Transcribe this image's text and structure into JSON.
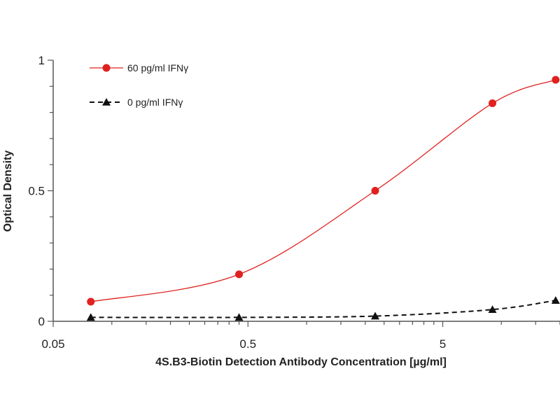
{
  "chart_data": {
    "type": "line",
    "xlabel": "4S.B3-Biotin Detection Antibody Concentration [µg/ml]",
    "ylabel": "Optical Density",
    "x_scale": "log",
    "xlim": [
      0.05,
      20
    ],
    "ylim": [
      0,
      1
    ],
    "x_ticks": [
      {
        "value": 0.05,
        "label": "0.05"
      },
      {
        "value": 0.5,
        "label": "0.5"
      },
      {
        "value": 5,
        "label": "5"
      }
    ],
    "y_ticks": [
      {
        "value": 0,
        "label": "0"
      },
      {
        "value": 0.5,
        "label": "0.5"
      },
      {
        "value": 1,
        "label": "1"
      }
    ],
    "grid": false,
    "legend_position": "top-left",
    "series": [
      {
        "name": "60 pg/ml IFNγ",
        "color": "#e0211f",
        "marker": "circle",
        "line_style": "solid",
        "x": [
          0.078,
          0.45,
          2.25,
          9.0,
          19.0
        ],
        "y": [
          0.075,
          0.18,
          0.5,
          0.835,
          0.925
        ]
      },
      {
        "name": "0 pg/ml IFNγ",
        "color": "#111111",
        "marker": "triangle",
        "line_style": "dashed",
        "x": [
          0.078,
          0.45,
          2.25,
          9.0,
          19.0
        ],
        "y": [
          0.015,
          0.015,
          0.02,
          0.045,
          0.08
        ]
      }
    ]
  }
}
